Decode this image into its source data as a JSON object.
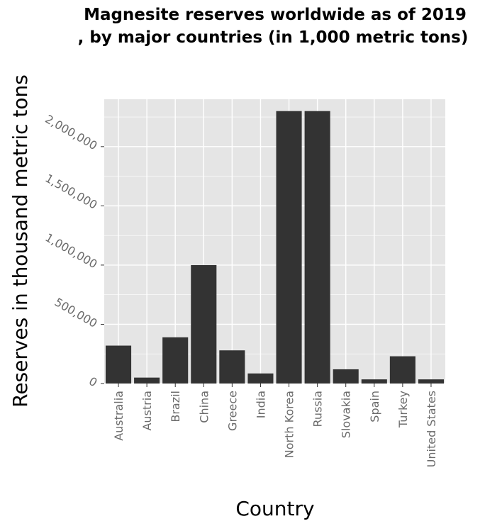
{
  "chart_data": {
    "type": "bar",
    "title_lines": [
      "Magnesite reserves worldwide as of 2019",
      ", by major countries (in 1,000 metric tons)"
    ],
    "xlabel": "Country",
    "ylabel": "Reserves in thousand metric tons",
    "categories": [
      "Australia",
      "Austria",
      "Brazil",
      "China",
      "Greece",
      "India",
      "North Korea",
      "Russia",
      "Slovakia",
      "Spain",
      "Turkey",
      "United States"
    ],
    "values": [
      320000,
      50000,
      390000,
      1000000,
      280000,
      85000,
      2300000,
      2300000,
      120000,
      35000,
      230000,
      35000
    ],
    "ylim": [
      0,
      2400000
    ],
    "yticks": [
      0,
      500000,
      1000000,
      1500000,
      2000000
    ],
    "ytick_labels": [
      "0",
      "500,000",
      "1,000,000",
      "1,500,000",
      "2,000,000"
    ],
    "grid": true,
    "colors": {
      "bar": "#333333",
      "panel": "#e5e5e5",
      "grid": "#ffffff",
      "tick_label": "#6b6b6b"
    }
  }
}
